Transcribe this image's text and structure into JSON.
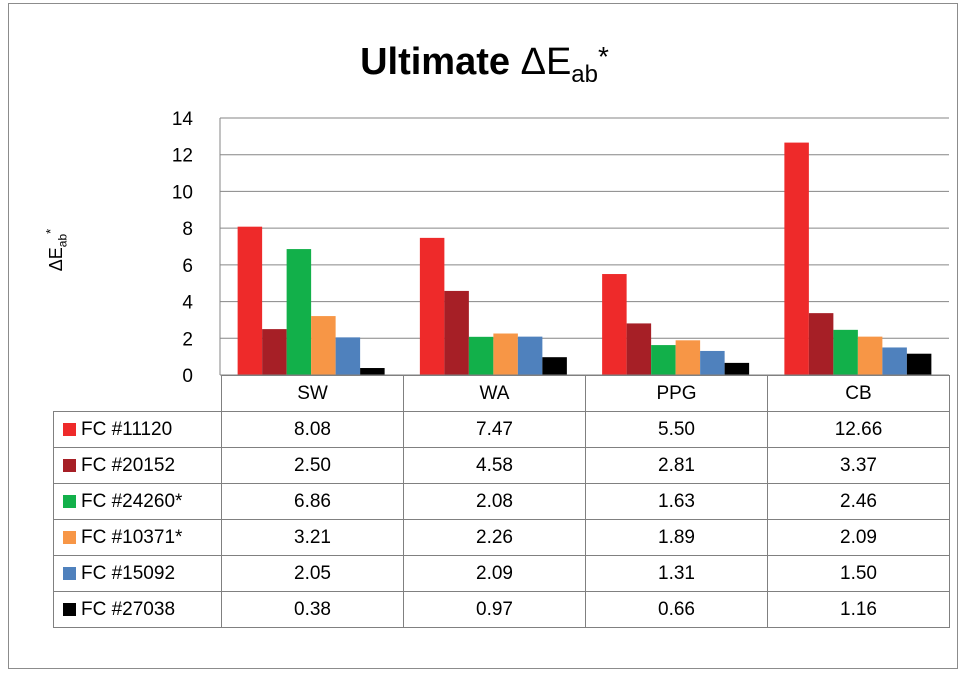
{
  "chart_data": {
    "type": "bar",
    "title_main": "Ultimate",
    "title_symbol": "ΔE",
    "title_sub": "ab",
    "title_sup": "*",
    "ylabel_symbol": "ΔE",
    "ylabel_sub": "ab",
    "ylabel_sup": "*",
    "categories": [
      "SW",
      "WA",
      "PPG",
      "CB"
    ],
    "ylim": [
      0,
      14
    ],
    "yticks": [
      0,
      2,
      4,
      6,
      8,
      10,
      12,
      14
    ],
    "grid": true,
    "legend": "data-table",
    "series": [
      {
        "name": "FC #11120",
        "color": "#ee2a2a",
        "values": [
          8.08,
          7.47,
          5.5,
          12.66
        ],
        "labels": [
          "8.08",
          "7.47",
          "5.50",
          "12.66"
        ]
      },
      {
        "name": "FC #20152",
        "color": "#a61f26",
        "values": [
          2.5,
          4.58,
          2.81,
          3.37
        ],
        "labels": [
          "2.50",
          "4.58",
          "2.81",
          "3.37"
        ]
      },
      {
        "name": "FC #24260*",
        "color": "#12b04a",
        "values": [
          6.86,
          2.08,
          1.63,
          2.46
        ],
        "labels": [
          "6.86",
          "2.08",
          "1.63",
          "2.46"
        ]
      },
      {
        "name": "FC #10371*",
        "color": "#f79646",
        "values": [
          3.21,
          2.26,
          1.89,
          2.09
        ],
        "labels": [
          "3.21",
          "2.26",
          "1.89",
          "2.09"
        ]
      },
      {
        "name": "FC #15092",
        "color": "#4f81bd",
        "values": [
          2.05,
          2.09,
          1.31,
          1.5
        ],
        "labels": [
          "2.05",
          "2.09",
          "1.31",
          "1.50"
        ]
      },
      {
        "name": "FC #27038",
        "color": "#000000",
        "values": [
          0.38,
          0.97,
          0.66,
          1.16
        ],
        "labels": [
          "0.38",
          "0.97",
          "0.66",
          "1.16"
        ]
      }
    ]
  }
}
